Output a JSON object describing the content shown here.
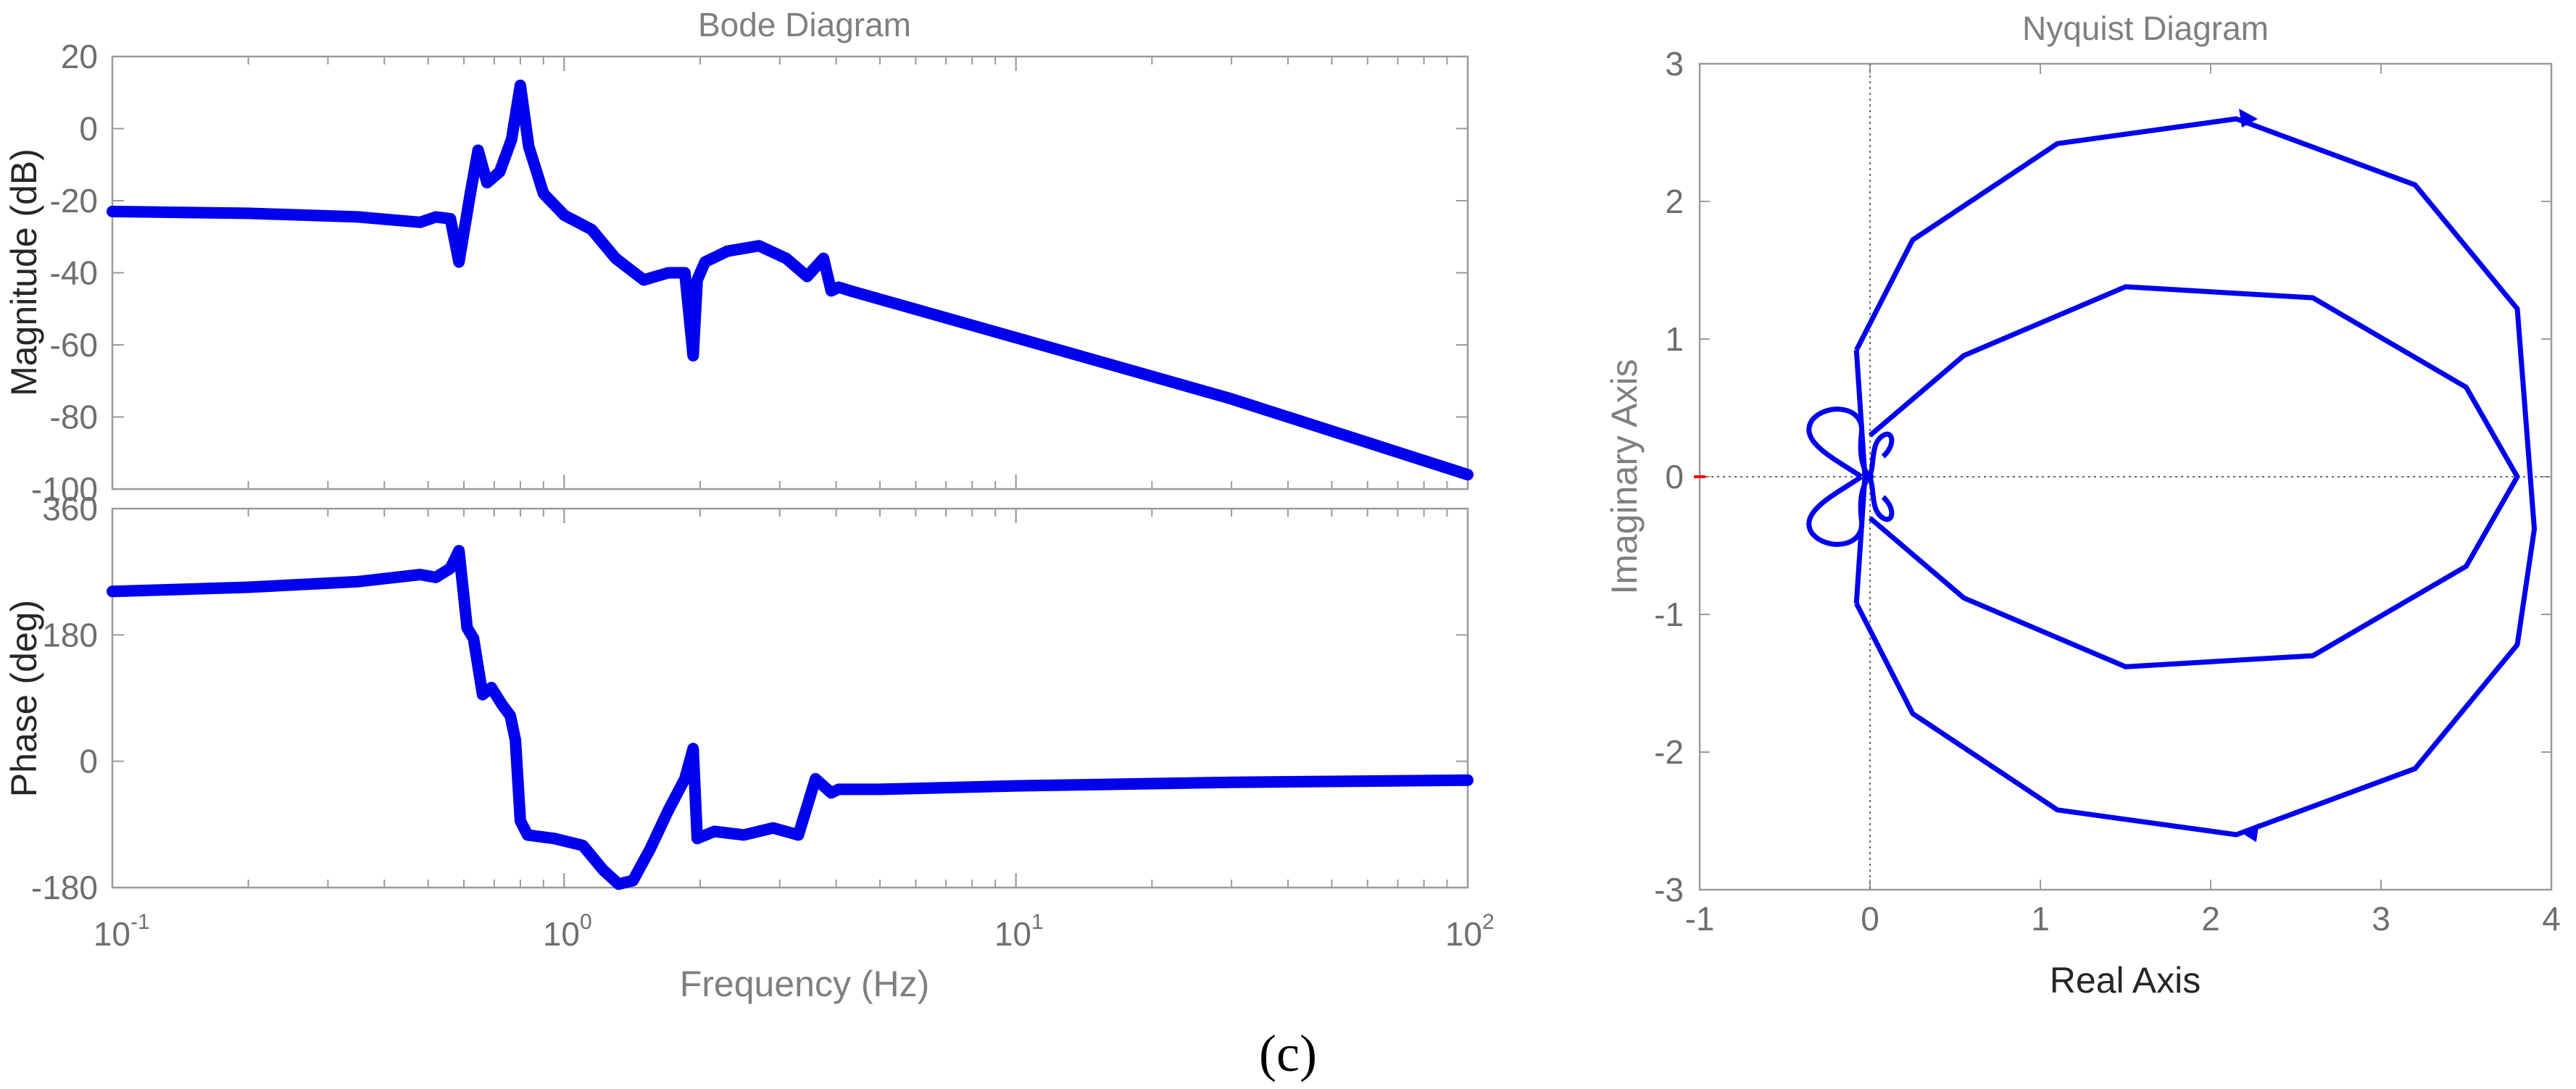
{
  "caption": "(c)",
  "colors": {
    "series": "#0000ee",
    "axis": "#9a9a9a",
    "zero_marker": "#ff0000"
  },
  "chart_data": [
    {
      "type": "line",
      "chart": "bode",
      "title": "Bode Diagram",
      "xlabel": "Frequency (Hz)",
      "xscale": "log",
      "xlim": [
        0.1,
        100
      ],
      "xtick_labels": [
        {
          "base": "10",
          "exp": "-1"
        },
        {
          "base": "10",
          "exp": "0"
        },
        {
          "base": "10",
          "exp": "1"
        },
        {
          "base": "10",
          "exp": "2"
        }
      ],
      "magnitude": {
        "ylabel": "Magnitude (dB)",
        "ylim": [
          -100,
          20
        ],
        "yticks": [
          "20",
          "0",
          "-20",
          "-40",
          "-60",
          "-80",
          "-100"
        ],
        "x": [
          0.1,
          0.2,
          0.35,
          0.48,
          0.52,
          0.56,
          0.585,
          0.62,
          0.645,
          0.675,
          0.72,
          0.765,
          0.8,
          0.835,
          0.9,
          1.0,
          1.15,
          1.3,
          1.5,
          1.7,
          1.85,
          1.93,
          1.97,
          2.05,
          2.3,
          2.7,
          3.1,
          3.45,
          3.75,
          3.9,
          4.05,
          4.3,
          10,
          30,
          100
        ],
        "y": [
          -23,
          -23.5,
          -24.5,
          -26,
          -24.5,
          -25,
          -37,
          -18,
          -6,
          -15,
          -12,
          -3,
          12,
          -5,
          -18,
          -24,
          -28,
          -36,
          -42,
          -40,
          -40,
          -63,
          -42,
          -37,
          -34,
          -32.5,
          -36,
          -41,
          -36,
          -45,
          -44,
          -45,
          -58,
          -75,
          -96
        ]
      },
      "phase": {
        "ylabel": "Phase (deg)",
        "ylim": [
          -180,
          360
        ],
        "yticks": [
          "360",
          "180",
          "0",
          "-180"
        ],
        "x": [
          0.1,
          0.2,
          0.35,
          0.48,
          0.52,
          0.56,
          0.585,
          0.61,
          0.63,
          0.66,
          0.69,
          0.73,
          0.76,
          0.78,
          0.8,
          0.83,
          0.95,
          1.1,
          1.22,
          1.32,
          1.42,
          1.55,
          1.7,
          1.85,
          1.93,
          1.97,
          2.15,
          2.5,
          2.9,
          3.3,
          3.6,
          3.9,
          4.05,
          4.3,
          5,
          10,
          30,
          100
        ],
        "y": [
          242,
          248,
          256,
          266,
          262,
          275,
          300,
          190,
          175,
          95,
          105,
          80,
          65,
          30,
          -85,
          -105,
          -110,
          -120,
          -155,
          -175,
          -170,
          -125,
          -70,
          -25,
          18,
          -110,
          -100,
          -105,
          -95,
          -105,
          -25,
          -45,
          -40,
          -40,
          -40,
          -35,
          -30,
          -27
        ]
      }
    },
    {
      "type": "line",
      "chart": "nyquist",
      "title": "Nyquist Diagram",
      "xlabel": "Real Axis",
      "ylabel": "Imaginary Axis",
      "xlim": [
        -1,
        4
      ],
      "ylim": [
        -3,
        3
      ],
      "xticks": [
        "-1",
        "0",
        "1",
        "2",
        "3",
        "4"
      ],
      "yticks": [
        "3",
        "2",
        "1",
        "0",
        "-1",
        "-2",
        "-3"
      ],
      "outer_x": [
        -0.08,
        0.25,
        1.1,
        2.15,
        3.2,
        3.8,
        3.9,
        3.8,
        3.2,
        2.15,
        1.1,
        0.25,
        -0.08
      ],
      "outer_y": [
        0.92,
        1.72,
        2.42,
        2.6,
        2.12,
        1.22,
        -0.38,
        -1.22,
        -2.12,
        -2.6,
        -2.42,
        -1.72,
        -0.92
      ],
      "inner_x": [
        0.0,
        0.55,
        1.5,
        2.6,
        3.5,
        3.8,
        3.5,
        2.6,
        1.5,
        0.55,
        0.0
      ],
      "inner_y": [
        0.3,
        0.88,
        1.38,
        1.3,
        0.65,
        0.0,
        -0.65,
        -1.3,
        -1.38,
        -0.88,
        -0.3
      ],
      "arrow_points": [
        {
          "x": 2.2,
          "y": 2.6,
          "direction": "right"
        },
        {
          "x": 2.25,
          "y": -2.58,
          "direction": "left"
        }
      ]
    }
  ]
}
